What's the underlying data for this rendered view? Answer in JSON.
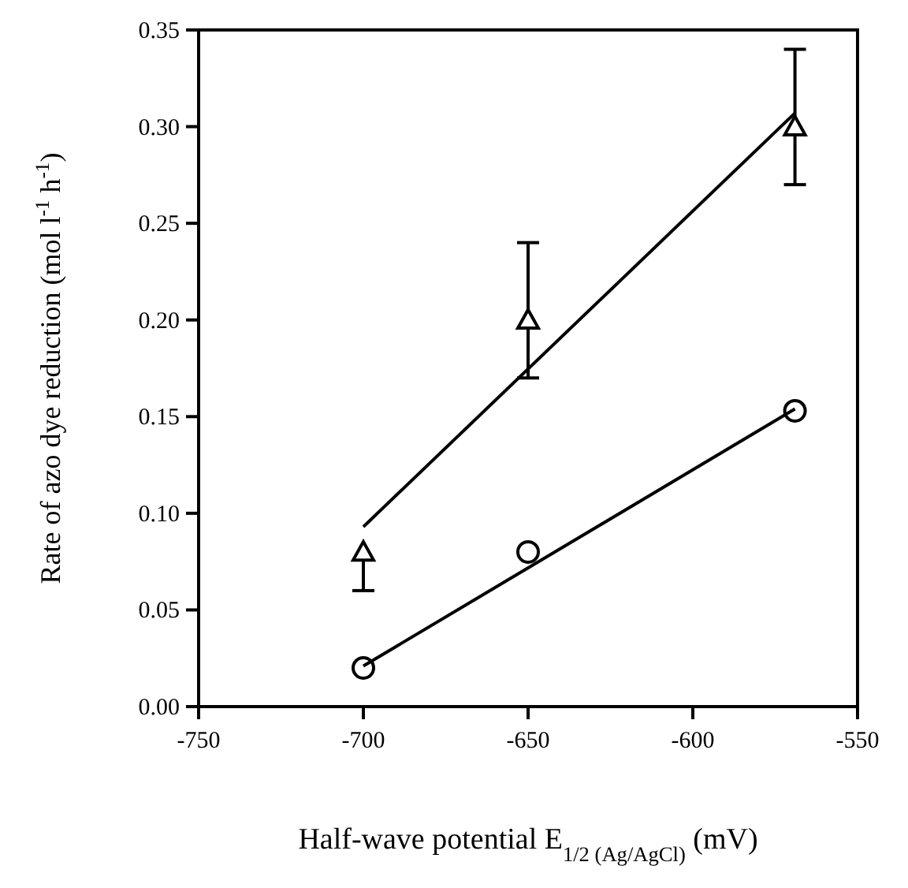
{
  "chart_data": {
    "type": "scatter",
    "xlabel": "Half-wave potential E$_{1/2 (Ag/AgCl)}$ (mV)",
    "ylabel": "Rate of azo dye reduction (mol l$^{-1}$ h$^{-1}$)",
    "xlim": [
      -750,
      -550
    ],
    "xticks": [
      -750,
      -700,
      -650,
      -600,
      -550
    ],
    "ylim": [
      0,
      0.35
    ],
    "yticks": [
      {
        "value": 0,
        "label": "0.00"
      },
      {
        "value": 0.05,
        "label": "0.05"
      },
      {
        "value": 0.1,
        "label": "0.10"
      },
      {
        "value": 0.15,
        "label": "0.15"
      },
      {
        "value": 0.2,
        "label": "0.20"
      },
      {
        "value": 0.25,
        "label": "0.25"
      },
      {
        "value": 0.3,
        "label": "0.30"
      },
      {
        "value": 0.35,
        "label": "0.35"
      }
    ],
    "grid": false,
    "series": [
      {
        "marker": "triangle",
        "color": "#000000",
        "x": [
          -700,
          -650,
          -569
        ],
        "values": [
          0.08,
          0.2,
          0.3
        ],
        "errors": [
          [
            0.06,
            0.08
          ],
          [
            0.17,
            0.24
          ],
          [
            0.27,
            0.34
          ]
        ]
      },
      {
        "marker": "circle",
        "color": "#000000",
        "x": [
          -700,
          -650,
          -569
        ],
        "values": [
          0.02,
          0.08,
          0.153
        ]
      },
      {
        "type": "line",
        "marker": "none",
        "line_style": "solid",
        "color": "#000000",
        "x": [
          -700,
          -569
        ],
        "values": [
          0.093,
          0.307
        ]
      },
      {
        "type": "line",
        "marker": "none",
        "line_style": "solid",
        "color": "#000000",
        "x": [
          -700,
          -569
        ],
        "values": [
          0.021,
          0.154
        ]
      }
    ]
  }
}
